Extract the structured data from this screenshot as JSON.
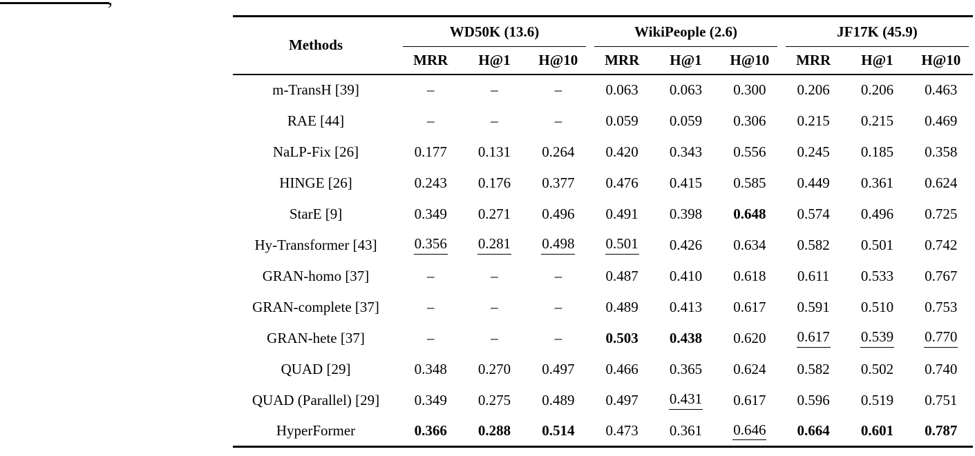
{
  "fragment": {
    "comma": ","
  },
  "table": {
    "methods_label": "Methods",
    "groups": [
      {
        "label": "WD50K (13.6)",
        "sub": [
          "MRR",
          "H@1",
          "H@10"
        ]
      },
      {
        "label": "WikiPeople (2.6)",
        "sub": [
          "MRR",
          "H@1",
          "H@10"
        ]
      },
      {
        "label": "JF17K (45.9)",
        "sub": [
          "MRR",
          "H@1",
          "H@10"
        ]
      }
    ],
    "style_legend": {
      "b": "bold-best",
      "u": "underline-second-best",
      "": "plain"
    },
    "rows": [
      {
        "method": "m-TransH [39]",
        "values": [
          "–",
          "–",
          "–",
          "0.063",
          "0.063",
          "0.300",
          "0.206",
          "0.206",
          "0.463"
        ],
        "styles": [
          "",
          "",
          "",
          "",
          "",
          "",
          "",
          "",
          ""
        ]
      },
      {
        "method": "RAE [44]",
        "values": [
          "–",
          "–",
          "–",
          "0.059",
          "0.059",
          "0.306",
          "0.215",
          "0.215",
          "0.469"
        ],
        "styles": [
          "",
          "",
          "",
          "",
          "",
          "",
          "",
          "",
          ""
        ]
      },
      {
        "method": "NaLP-Fix [26]",
        "values": [
          "0.177",
          "0.131",
          "0.264",
          "0.420",
          "0.343",
          "0.556",
          "0.245",
          "0.185",
          "0.358"
        ],
        "styles": [
          "",
          "",
          "",
          "",
          "",
          "",
          "",
          "",
          ""
        ]
      },
      {
        "method": "HINGE [26]",
        "values": [
          "0.243",
          "0.176",
          "0.377",
          "0.476",
          "0.415",
          "0.585",
          "0.449",
          "0.361",
          "0.624"
        ],
        "styles": [
          "",
          "",
          "",
          "",
          "",
          "",
          "",
          "",
          ""
        ]
      },
      {
        "method": "StarE [9]",
        "values": [
          "0.349",
          "0.271",
          "0.496",
          "0.491",
          "0.398",
          "0.648",
          "0.574",
          "0.496",
          "0.725"
        ],
        "styles": [
          "",
          "",
          "",
          "",
          "",
          "b",
          "",
          "",
          ""
        ]
      },
      {
        "method": "Hy-Transformer [43]",
        "values": [
          "0.356",
          "0.281",
          "0.498",
          "0.501",
          "0.426",
          "0.634",
          "0.582",
          "0.501",
          "0.742"
        ],
        "styles": [
          "u",
          "u",
          "u",
          "u",
          "",
          "",
          "",
          "",
          ""
        ]
      },
      {
        "method": "GRAN-homo [37]",
        "values": [
          "–",
          "–",
          "–",
          "0.487",
          "0.410",
          "0.618",
          "0.611",
          "0.533",
          "0.767"
        ],
        "styles": [
          "",
          "",
          "",
          "",
          "",
          "",
          "",
          "",
          ""
        ]
      },
      {
        "method": "GRAN-complete [37]",
        "values": [
          "–",
          "–",
          "–",
          "0.489",
          "0.413",
          "0.617",
          "0.591",
          "0.510",
          "0.753"
        ],
        "styles": [
          "",
          "",
          "",
          "",
          "",
          "",
          "",
          "",
          ""
        ]
      },
      {
        "method": "GRAN-hete [37]",
        "values": [
          "–",
          "–",
          "–",
          "0.503",
          "0.438",
          "0.620",
          "0.617",
          "0.539",
          "0.770"
        ],
        "styles": [
          "",
          "",
          "",
          "b",
          "b",
          "",
          "u",
          "u",
          "u"
        ]
      },
      {
        "method": "QUAD [29]",
        "values": [
          "0.348",
          "0.270",
          "0.497",
          "0.466",
          "0.365",
          "0.624",
          "0.582",
          "0.502",
          "0.740"
        ],
        "styles": [
          "",
          "",
          "",
          "",
          "",
          "",
          "",
          "",
          ""
        ]
      },
      {
        "method": "QUAD (Parallel) [29]",
        "values": [
          "0.349",
          "0.275",
          "0.489",
          "0.497",
          "0.431",
          "0.617",
          "0.596",
          "0.519",
          "0.751"
        ],
        "styles": [
          "",
          "",
          "",
          "",
          "u",
          "",
          "",
          "",
          ""
        ]
      },
      {
        "method": "HyperFormer",
        "values": [
          "0.366",
          "0.288",
          "0.514",
          "0.473",
          "0.361",
          "0.646",
          "0.664",
          "0.601",
          "0.787"
        ],
        "styles": [
          "b",
          "b",
          "b",
          "",
          "",
          "u",
          "b",
          "b",
          "b"
        ]
      }
    ]
  },
  "chart_data": {
    "type": "table",
    "columns": [
      "Methods",
      "WD50K MRR",
      "WD50K H@1",
      "WD50K H@10",
      "WikiPeople MRR",
      "WikiPeople H@1",
      "WikiPeople H@10",
      "JF17K MRR",
      "JF17K H@1",
      "JF17K H@10"
    ],
    "rows": [
      [
        "m-TransH [39]",
        null,
        null,
        null,
        0.063,
        0.063,
        0.3,
        0.206,
        0.206,
        0.463
      ],
      [
        "RAE [44]",
        null,
        null,
        null,
        0.059,
        0.059,
        0.306,
        0.215,
        0.215,
        0.469
      ],
      [
        "NaLP-Fix [26]",
        0.177,
        0.131,
        0.264,
        0.42,
        0.343,
        0.556,
        0.245,
        0.185,
        0.358
      ],
      [
        "HINGE [26]",
        0.243,
        0.176,
        0.377,
        0.476,
        0.415,
        0.585,
        0.449,
        0.361,
        0.624
      ],
      [
        "StarE [9]",
        0.349,
        0.271,
        0.496,
        0.491,
        0.398,
        0.648,
        0.574,
        0.496,
        0.725
      ],
      [
        "Hy-Transformer [43]",
        0.356,
        0.281,
        0.498,
        0.501,
        0.426,
        0.634,
        0.582,
        0.501,
        0.742
      ],
      [
        "GRAN-homo [37]",
        null,
        null,
        null,
        0.487,
        0.41,
        0.618,
        0.611,
        0.533,
        0.767
      ],
      [
        "GRAN-complete [37]",
        null,
        null,
        null,
        0.489,
        0.413,
        0.617,
        0.591,
        0.51,
        0.753
      ],
      [
        "GRAN-hete [37]",
        null,
        null,
        null,
        0.503,
        0.438,
        0.62,
        0.617,
        0.539,
        0.77
      ],
      [
        "QUAD [29]",
        0.348,
        0.27,
        0.497,
        0.466,
        0.365,
        0.624,
        0.582,
        0.502,
        0.74
      ],
      [
        "QUAD (Parallel) [29]",
        0.349,
        0.275,
        0.489,
        0.497,
        0.431,
        0.617,
        0.596,
        0.519,
        0.751
      ],
      [
        "HyperFormer",
        0.366,
        0.288,
        0.514,
        0.473,
        0.361,
        0.646,
        0.664,
        0.601,
        0.787
      ]
    ]
  }
}
